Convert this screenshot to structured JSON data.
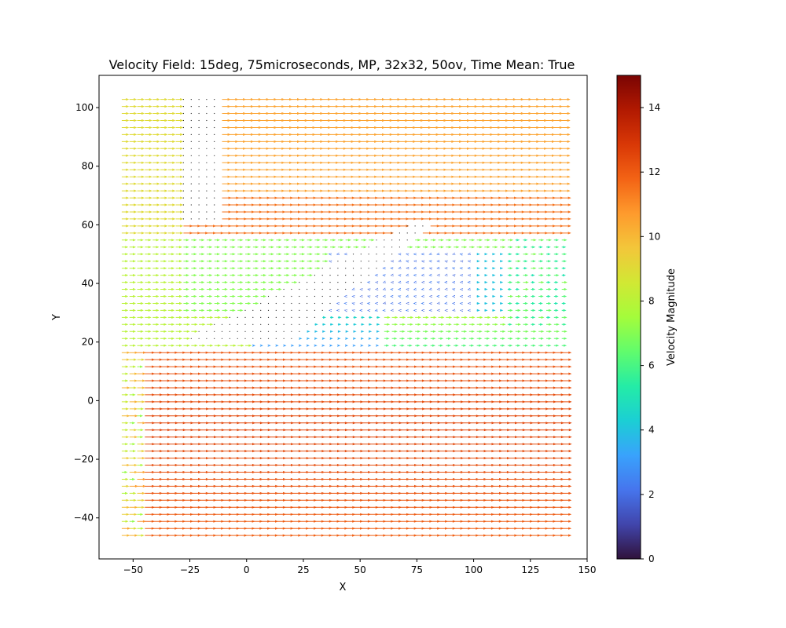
{
  "chart_data": {
    "type": "quiver",
    "title": "Velocity Field: 15deg, 75microseconds, MP, 32x32, 50ov, Time Mean: True",
    "xlabel": "X",
    "ylabel": "Y",
    "xlim": [
      -65,
      150
    ],
    "ylim": [
      -54,
      111
    ],
    "x_ticks": [
      -50,
      -25,
      0,
      25,
      50,
      75,
      100,
      125,
      150
    ],
    "x_tick_labels": [
      "−50",
      "−25",
      "0",
      "25",
      "50",
      "75",
      "100",
      "125",
      "150"
    ],
    "y_ticks": [
      -40,
      -20,
      0,
      20,
      40,
      60,
      80,
      100
    ],
    "y_tick_labels": [
      "−40",
      "−20",
      "0",
      "20",
      "40",
      "60",
      "80",
      "100"
    ],
    "grid": false,
    "arrow_direction": "predominantly +x",
    "colormap": "turbo",
    "colorbar": {
      "label": "Velocity Magnitude",
      "range": [
        0,
        15
      ],
      "ticks": [
        0,
        2,
        4,
        6,
        8,
        10,
        12,
        14
      ],
      "tick_labels": [
        "0",
        "2",
        "4",
        "6",
        "8",
        "10",
        "12",
        "14"
      ]
    },
    "magnitude_regions": [
      {
        "region": "lower jet",
        "x": [
          -45,
          140
        ],
        "y": [
          -45,
          18
        ],
        "magnitude": 12.5
      },
      {
        "region": "upper stream",
        "x": [
          -30,
          140
        ],
        "y": [
          55,
          103
        ],
        "magnitude": 11
      },
      {
        "region": "left inflow",
        "x": [
          -55,
          -30
        ],
        "y": [
          25,
          103
        ],
        "magnitude": 9
      },
      {
        "region": "recirculation zone",
        "x": [
          40,
          110
        ],
        "y": [
          30,
          50
        ],
        "magnitude": 2
      },
      {
        "region": "shear layer",
        "x": [
          20,
          140
        ],
        "y": [
          22,
          30
        ],
        "magnitude": 6
      },
      {
        "region": "masked wedge",
        "x": [
          -30,
          80
        ],
        "y": [
          20,
          60
        ],
        "magnitude": 0
      }
    ]
  }
}
